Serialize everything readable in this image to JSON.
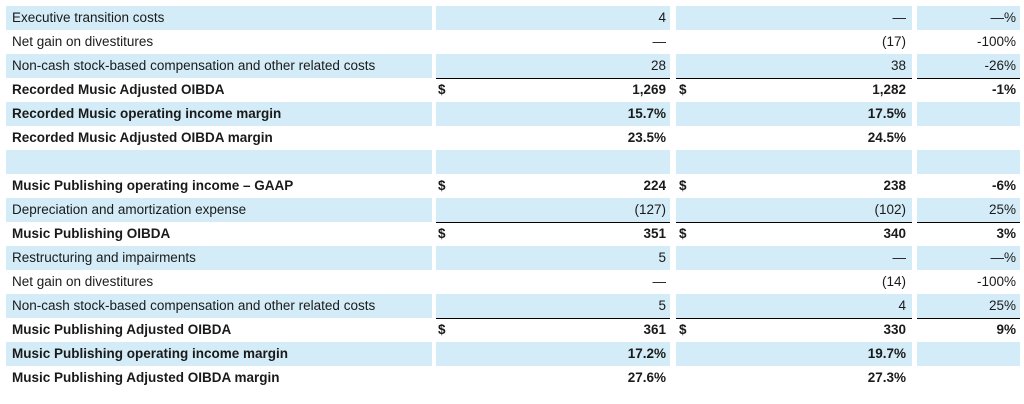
{
  "table": {
    "rows": [
      [
        "Executive transition costs",
        null,
        "4",
        null,
        "—",
        "—%"
      ],
      [
        "Net gain on divestitures",
        null,
        "—",
        null,
        "(17)",
        "-100%"
      ],
      [
        "Non-cash stock-based compensation and other related costs",
        null,
        "28",
        null,
        "38",
        "-26%"
      ],
      [
        "Recorded Music Adjusted OIBDA",
        "$",
        "1,269",
        "$",
        "1,282",
        "-1%"
      ],
      [
        "Recorded Music operating income margin",
        null,
        "15.7%",
        null,
        "17.5%",
        null
      ],
      [
        "Recorded Music Adjusted OIBDA margin",
        null,
        "23.5%",
        null,
        "24.5%",
        null
      ],
      [
        null,
        null,
        null,
        null,
        null,
        null
      ],
      [
        "Music Publishing operating income – GAAP",
        "$",
        "224",
        "$",
        "238",
        "-6%"
      ],
      [
        "Depreciation and amortization expense",
        null,
        "(127)",
        null,
        "(102)",
        "25%"
      ],
      [
        "Music Publishing OIBDA",
        "$",
        "351",
        "$",
        "340",
        "3%"
      ],
      [
        "Restructuring and impairments",
        null,
        "5",
        null,
        "—",
        "—%"
      ],
      [
        "Net gain on divestitures",
        null,
        "—",
        null,
        "(14)",
        "-100%"
      ],
      [
        "Non-cash stock-based compensation and other related costs",
        null,
        "5",
        null,
        "4",
        "25%"
      ],
      [
        "Music Publishing Adjusted OIBDA",
        "$",
        "361",
        "$",
        "330",
        "9%"
      ],
      [
        "Music Publishing operating income margin",
        null,
        "17.2%",
        null,
        "19.7%",
        null
      ],
      [
        "Music Publishing Adjusted OIBDA margin",
        null,
        "27.6%",
        null,
        "27.3%",
        null
      ]
    ]
  }
}
